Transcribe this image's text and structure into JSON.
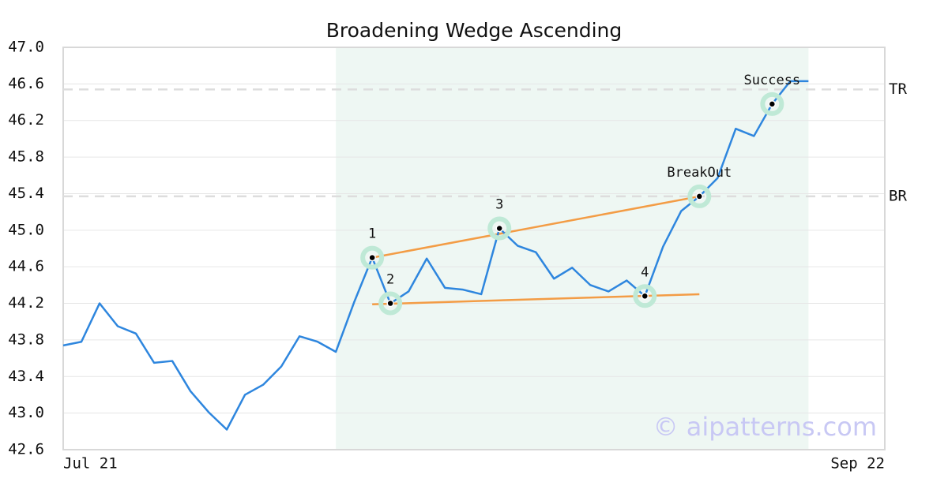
{
  "chart_data": {
    "type": "line",
    "title": "Broadening Wedge Ascending",
    "x": [
      0,
      1,
      2,
      3,
      4,
      5,
      6,
      7,
      8,
      9,
      10,
      11,
      12,
      13,
      14,
      15,
      16,
      17,
      18,
      19,
      20,
      21,
      22,
      23,
      24,
      25,
      26,
      27,
      28,
      29,
      30,
      31,
      32,
      33,
      34,
      35,
      36,
      37,
      38,
      39,
      40,
      41
    ],
    "series": [
      {
        "color": "#2e86de",
        "values": [
          43.74,
          43.78,
          44.2,
          43.95,
          43.87,
          43.55,
          43.57,
          43.24,
          43.01,
          42.82,
          43.2,
          43.31,
          43.51,
          43.84,
          43.78,
          43.67,
          44.21,
          44.7,
          44.2,
          44.33,
          44.69,
          44.37,
          44.35,
          44.3,
          45.02,
          44.83,
          44.76,
          44.47,
          44.59,
          44.4,
          44.33,
          44.45,
          44.28,
          44.82,
          45.21,
          45.37,
          45.57,
          46.11,
          46.03,
          46.38,
          46.63,
          46.63
        ]
      }
    ],
    "xlim": [
      0,
      45.2
    ],
    "xticks": [
      {
        "value": 0,
        "label": "Jul 21"
      },
      {
        "value": 45.2,
        "label": "Sep 22"
      }
    ],
    "ylim": [
      42.6,
      47.0
    ],
    "yticks": [
      42.6,
      {
        "value": 43.0,
        "label": "43.0"
      },
      43.4,
      43.8,
      44.2,
      44.6,
      {
        "value": 45.0,
        "label": "45.0"
      },
      45.4,
      45.8,
      46.2,
      46.6,
      {
        "value": 47.0,
        "label": "47.0"
      }
    ],
    "grid": true,
    "shaded_region": [
      15,
      41
    ],
    "shade_color": "#eef7f3",
    "hlines": [
      {
        "value": 46.54,
        "label": "TR"
      },
      {
        "value": 45.37,
        "label": "BR"
      }
    ],
    "trendlines": [
      {
        "x": [
          17,
          35
        ],
        "y": [
          44.7,
          45.37
        ],
        "color": "#f39c45"
      },
      {
        "x": [
          17,
          35
        ],
        "y": [
          44.19,
          44.3
        ],
        "color": "#f39c45"
      }
    ],
    "points": [
      {
        "x": 17,
        "y": 44.7,
        "label": "1"
      },
      {
        "x": 18,
        "y": 44.2,
        "label": "2"
      },
      {
        "x": 24,
        "y": 45.02,
        "label": "3"
      },
      {
        "x": 32,
        "y": 44.28,
        "label": "4"
      },
      {
        "x": 35,
        "y": 45.37,
        "label": "BreakOut"
      },
      {
        "x": 39,
        "y": 46.38,
        "label": "Success"
      }
    ],
    "watermark": "© aipatterns.com"
  }
}
